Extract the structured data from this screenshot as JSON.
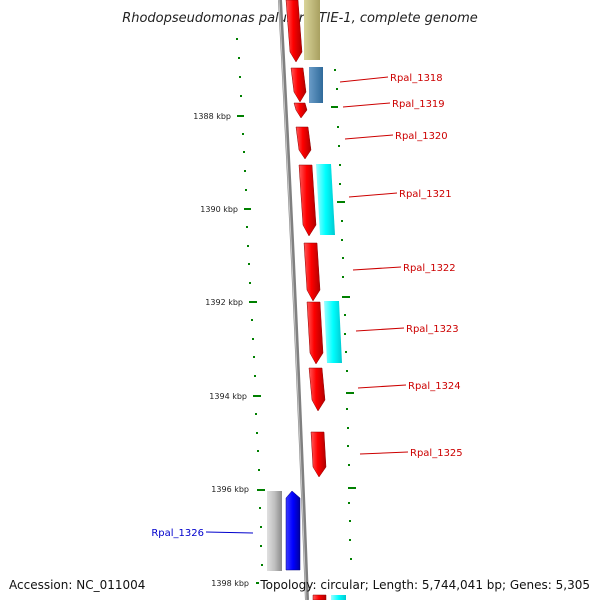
{
  "title": "Rhodopseudomonas palustris TIE-1, complete genome",
  "ticks": [
    "1388 kbp",
    "1390 kbp",
    "1392 kbp",
    "1394 kbp",
    "1396 kbp",
    "1398 kbp"
  ],
  "genes": [
    {
      "label": "Rpal_1318",
      "color": "#cc0000"
    },
    {
      "label": "Rpal_1319",
      "color": "#cc0000"
    },
    {
      "label": "Rpal_1320",
      "color": "#cc0000"
    },
    {
      "label": "Rpal_1321",
      "color": "#cc0000"
    },
    {
      "label": "Rpal_1322",
      "color": "#cc0000"
    },
    {
      "label": "Rpal_1323",
      "color": "#cc0000"
    },
    {
      "label": "Rpal_1324",
      "color": "#cc0000"
    },
    {
      "label": "Rpal_1325",
      "color": "#cc0000"
    },
    {
      "label": "Rpal_1326",
      "color": "#0000cc"
    }
  ],
  "colors": {
    "forward_cds": "#ff0000",
    "reverse_cds": "#0000ff",
    "cog_cyan": "#00ffff",
    "cog_olive": "#bdb76b",
    "cog_steel": "#4682b4",
    "cog_gray": "#c0c0c0",
    "backbone": "#808080",
    "tick_green": "#008000"
  },
  "footer": {
    "accession": "Accession: NC_011004",
    "summary": "Topology: circular; Length: 5,744,041 bp; Genes: 5,305"
  }
}
